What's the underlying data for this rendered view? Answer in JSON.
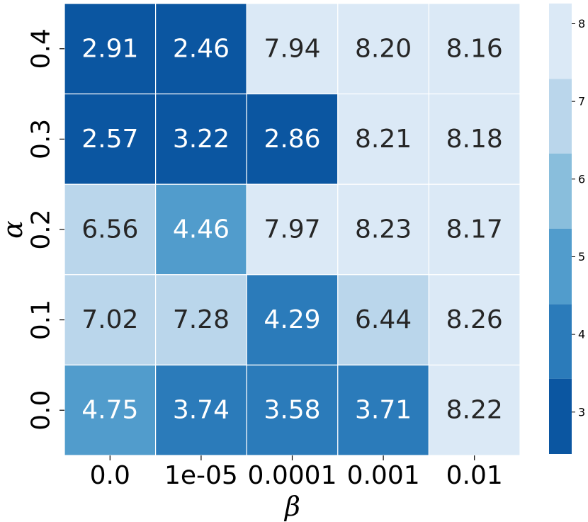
{
  "chart_data": {
    "type": "heatmap",
    "xlabel": "β",
    "ylabel": "α",
    "x_categories": [
      "0.0",
      "1e-05",
      "0.0001",
      "0.001",
      "0.01"
    ],
    "y_categories": [
      "0.4",
      "0.3",
      "0.2",
      "0.1",
      "0.0"
    ],
    "values": [
      [
        2.91,
        2.46,
        7.94,
        8.2,
        8.16
      ],
      [
        2.57,
        3.22,
        2.86,
        8.21,
        8.18
      ],
      [
        6.56,
        4.46,
        7.97,
        8.23,
        8.17
      ],
      [
        7.02,
        7.28,
        4.29,
        6.44,
        8.26
      ],
      [
        4.75,
        3.74,
        3.58,
        3.71,
        8.22
      ]
    ],
    "value_labels": [
      [
        "2.91",
        "2.46",
        "7.94",
        "8.20",
        "8.16"
      ],
      [
        "2.57",
        "3.22",
        "2.86",
        "8.21",
        "8.18"
      ],
      [
        "6.56",
        "4.46",
        "7.97",
        "8.23",
        "8.17"
      ],
      [
        "7.02",
        "7.28",
        "4.29",
        "6.44",
        "8.26"
      ],
      [
        "4.75",
        "3.74",
        "3.58",
        "3.71",
        "8.22"
      ]
    ],
    "colorbar": {
      "min": 2.46,
      "max": 8.26,
      "ticks": [
        "3",
        "4",
        "5",
        "6",
        "7",
        "8"
      ],
      "levels": [
        2.46,
        3.43,
        4.39,
        5.36,
        6.33,
        7.29,
        8.26
      ],
      "colors": [
        "#0b56a1",
        "#2b7bba",
        "#519ccc",
        "#89bedc",
        "#bad6eb",
        "#dbe9f6"
      ]
    },
    "cell_border_color": "#ffffff",
    "dark_text_color": "#262626",
    "light_text_color": "#ffffff",
    "light_text_threshold": 5.36,
    "grid": false
  }
}
